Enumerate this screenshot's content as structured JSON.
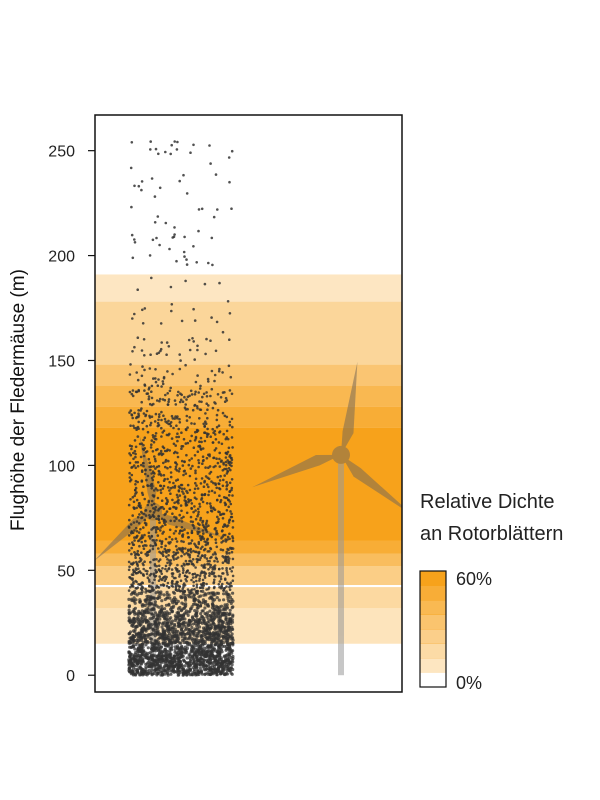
{
  "chart_data": {
    "type": "scatter",
    "title": "",
    "xlabel": "",
    "ylabel": "Flughöhe der Fledermäuse (m)",
    "ylim": [
      -8,
      267
    ],
    "y_ticks": [
      0,
      50,
      100,
      150,
      200,
      250
    ],
    "grid": false,
    "legend": {
      "title_line1": "Relative Dichte",
      "title_line2": "an Rotorblättern",
      "max_label": "60%",
      "min_label": "0%",
      "placement": "right"
    },
    "colors": {
      "band": "#f7a21b",
      "points": "#333333",
      "turbine": "#7a6a55",
      "frame": "#111111"
    },
    "density_bands": [
      {
        "from": 15,
        "to": 32,
        "density": 0.12
      },
      {
        "from": 32,
        "to": 42,
        "density": 0.2
      },
      {
        "from": 43,
        "to": 52,
        "density": 0.28
      },
      {
        "from": 52,
        "to": 58,
        "density": 0.4
      },
      {
        "from": 58,
        "to": 64,
        "density": 0.52
      },
      {
        "from": 64,
        "to": 118,
        "density": 0.6
      },
      {
        "from": 118,
        "to": 128,
        "density": 0.52
      },
      {
        "from": 128,
        "to": 138,
        "density": 0.44
      },
      {
        "from": 138,
        "to": 148,
        "density": 0.34
      },
      {
        "from": 148,
        "to": 178,
        "density": 0.22
      },
      {
        "from": 178,
        "to": 191,
        "density": 0.1
      }
    ],
    "turbines": [
      {
        "hub_height": 78,
        "rotor_radius": 37
      },
      {
        "hub_height": 105,
        "rotor_radius": 45
      }
    ],
    "point_density_profile": [
      {
        "from": 0,
        "to": 10,
        "count": 700
      },
      {
        "from": 10,
        "to": 20,
        "count": 560
      },
      {
        "from": 20,
        "to": 30,
        "count": 460
      },
      {
        "from": 30,
        "to": 40,
        "count": 270
      },
      {
        "from": 40,
        "to": 50,
        "count": 240
      },
      {
        "from": 50,
        "to": 60,
        "count": 210
      },
      {
        "from": 60,
        "to": 70,
        "count": 170
      },
      {
        "from": 70,
        "to": 80,
        "count": 150
      },
      {
        "from": 80,
        "to": 90,
        "count": 140
      },
      {
        "from": 90,
        "to": 100,
        "count": 130
      },
      {
        "from": 100,
        "to": 110,
        "count": 120
      },
      {
        "from": 110,
        "to": 120,
        "count": 100
      },
      {
        "from": 120,
        "to": 130,
        "count": 85
      },
      {
        "from": 130,
        "to": 136,
        "count": 60
      },
      {
        "from": 136,
        "to": 150,
        "count": 45
      },
      {
        "from": 150,
        "to": 162,
        "count": 28
      },
      {
        "from": 162,
        "to": 175,
        "count": 14
      },
      {
        "from": 175,
        "to": 190,
        "count": 8
      },
      {
        "from": 195,
        "to": 225,
        "count": 34
      },
      {
        "from": 225,
        "to": 255,
        "count": 30
      }
    ],
    "x_spread": [
      0.25,
      0.5
    ]
  }
}
